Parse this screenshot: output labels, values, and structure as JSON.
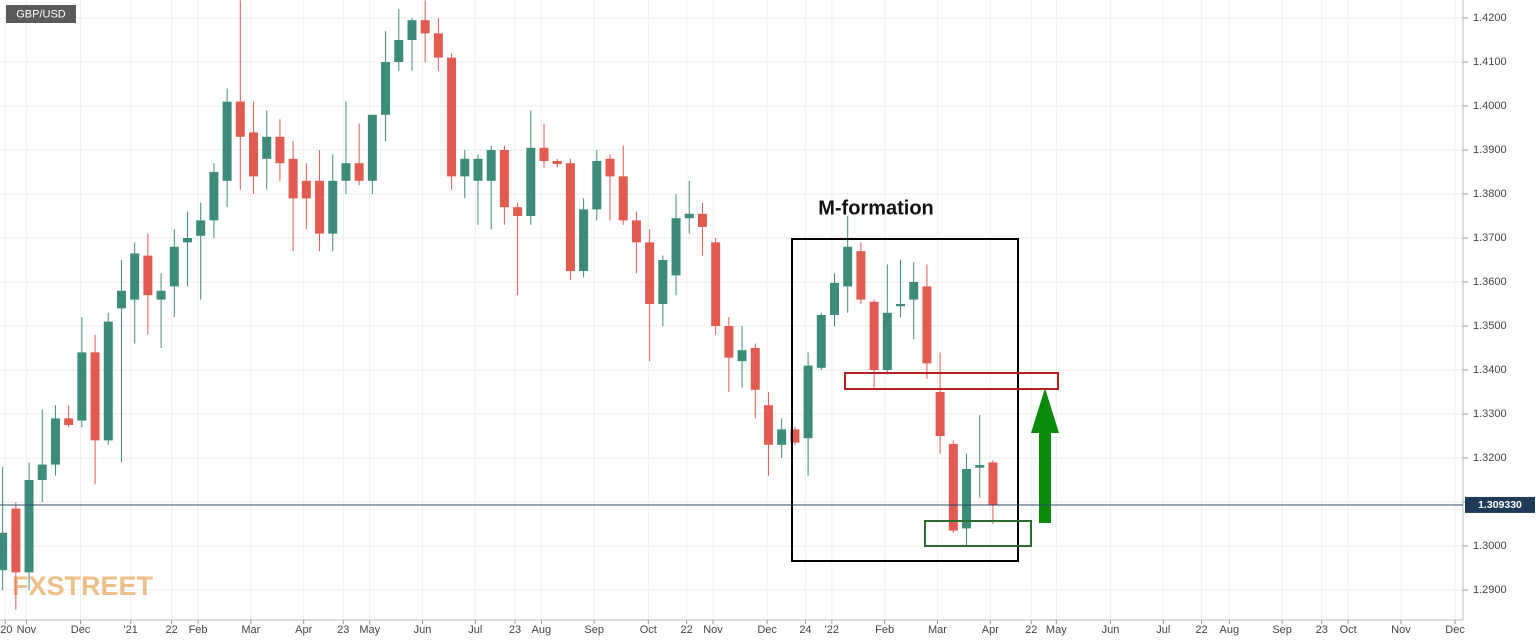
{
  "chart_data": {
    "type": "candlestick",
    "title": "GBP/USD",
    "annotation": "M-formation",
    "watermark": "FXSTREET",
    "up_color": "#3d8c7a",
    "down_color": "#e15b50",
    "grid": true,
    "x": [
      0,
      1,
      2,
      3,
      4,
      5,
      6,
      7,
      8,
      9,
      10,
      11,
      12,
      13,
      14,
      15,
      16,
      17,
      18,
      19,
      20,
      21,
      22,
      23,
      24,
      25,
      26,
      27,
      28,
      29,
      30,
      31,
      32,
      33,
      34,
      35,
      36,
      37,
      38,
      39,
      40,
      41,
      42,
      43,
      44,
      45,
      46,
      47,
      48,
      49,
      50,
      51,
      52,
      53,
      54,
      55,
      56,
      57,
      58,
      59,
      60,
      61,
      62,
      63,
      64,
      65,
      66,
      67,
      68,
      69,
      70,
      71,
      72,
      73,
      74,
      75
    ],
    "open": [
      1.2945,
      1.3085,
      1.294,
      1.315,
      1.3185,
      1.329,
      1.3285,
      1.344,
      1.324,
      1.354,
      1.356,
      1.366,
      1.356,
      1.359,
      1.369,
      1.3705,
      1.374,
      1.383,
      1.401,
      1.394,
      1.388,
      1.393,
      1.388,
      1.383,
      1.383,
      1.371,
      1.383,
      1.387,
      1.383,
      1.398,
      1.41,
      1.415,
      1.4195,
      1.4165,
      1.411,
      1.384,
      1.383,
      1.383,
      1.39,
      1.377,
      1.375,
      1.3905,
      1.3875,
      1.387,
      1.3625,
      1.3765,
      1.388,
      1.384,
      1.374,
      1.369,
      1.355,
      1.3615,
      1.3745,
      1.3755,
      1.369,
      1.35,
      1.342,
      1.345,
      1.332,
      1.323,
      1.3265,
      1.3245,
      1.3405,
      1.3525,
      1.359,
      1.367,
      1.3555,
      1.34,
      1.3545,
      1.356,
      1.359,
      1.335,
      1.3232,
      1.304,
      1.3178,
      1.319
    ],
    "high": [
      1.318,
      1.31,
      1.319,
      1.331,
      1.332,
      1.332,
      1.352,
      1.348,
      1.353,
      1.365,
      1.369,
      1.371,
      1.362,
      1.372,
      1.376,
      1.378,
      1.387,
      1.404,
      1.424,
      1.401,
      1.399,
      1.397,
      1.392,
      1.387,
      1.39,
      1.389,
      1.401,
      1.396,
      1.398,
      1.417,
      1.422,
      1.42,
      1.424,
      1.42,
      1.412,
      1.39,
      1.389,
      1.391,
      1.391,
      1.378,
      1.399,
      1.396,
      1.388,
      1.388,
      1.379,
      1.39,
      1.389,
      1.391,
      1.376,
      1.372,
      1.366,
      1.38,
      1.383,
      1.378,
      1.37,
      1.352,
      1.35,
      1.346,
      1.335,
      1.329,
      1.327,
      1.344,
      1.353,
      1.362,
      1.375,
      1.369,
      1.356,
      1.364,
      1.365,
      1.3645,
      1.364,
      1.344,
      1.324,
      1.321,
      1.3298,
      1.3195
    ],
    "low": [
      1.29,
      1.2855,
      1.29,
      1.31,
      1.316,
      1.327,
      1.327,
      1.314,
      1.323,
      1.319,
      1.346,
      1.348,
      1.345,
      1.352,
      1.359,
      1.356,
      1.37,
      1.377,
      1.381,
      1.38,
      1.381,
      1.383,
      1.367,
      1.372,
      1.367,
      1.367,
      1.38,
      1.382,
      1.38,
      1.392,
      1.408,
      1.408,
      1.41,
      1.408,
      1.381,
      1.379,
      1.373,
      1.372,
      1.373,
      1.357,
      1.373,
      1.386,
      1.386,
      1.3605,
      1.361,
      1.374,
      1.374,
      1.373,
      1.362,
      1.342,
      1.35,
      1.357,
      1.371,
      1.366,
      1.348,
      1.335,
      1.336,
      1.329,
      1.316,
      1.32,
      1.323,
      1.316,
      1.34,
      1.35,
      1.353,
      1.355,
      1.336,
      1.339,
      1.352,
      1.347,
      1.338,
      1.321,
      1.303,
      1.3,
      1.311,
      1.305
    ],
    "close": [
      1.303,
      1.294,
      1.315,
      1.3185,
      1.329,
      1.3275,
      1.344,
      1.324,
      1.351,
      1.358,
      1.3665,
      1.357,
      1.358,
      1.368,
      1.37,
      1.374,
      1.385,
      1.401,
      1.393,
      1.384,
      1.393,
      1.387,
      1.379,
      1.379,
      1.371,
      1.383,
      1.387,
      1.383,
      1.398,
      1.41,
      1.415,
      1.4195,
      1.4165,
      1.411,
      1.384,
      1.388,
      1.388,
      1.39,
      1.377,
      1.375,
      1.3905,
      1.3875,
      1.3868,
      1.3625,
      1.3765,
      1.3875,
      1.384,
      1.374,
      1.369,
      1.355,
      1.365,
      1.3745,
      1.3755,
      1.3725,
      1.35,
      1.3428,
      1.3445,
      1.3355,
      1.323,
      1.3265,
      1.3235,
      1.341,
      1.3525,
      1.3598,
      1.368,
      1.356,
      1.34,
      1.353,
      1.355,
      1.36,
      1.3415,
      1.325,
      1.3035,
      1.3175,
      1.3184,
      1.3093
    ],
    "current_price": {
      "value": 1.30933,
      "label": "1.309330"
    },
    "xlim": [
      -0.2,
      110.6
    ],
    "xticks": [
      {
        "value": 0.2,
        "label": "'20"
      },
      {
        "value": 1.8,
        "label": "Nov"
      },
      {
        "value": 5.9,
        "label": "Dec"
      },
      {
        "value": 9.7,
        "label": "'21"
      },
      {
        "value": 12.8,
        "label": "22"
      },
      {
        "value": 14.8,
        "label": "Feb"
      },
      {
        "value": 18.8,
        "label": "Mar"
      },
      {
        "value": 22.8,
        "label": "Apr"
      },
      {
        "value": 25.8,
        "label": "23"
      },
      {
        "value": 27.8,
        "label": "May"
      },
      {
        "value": 31.8,
        "label": "Jun"
      },
      {
        "value": 35.8,
        "label": "Jul"
      },
      {
        "value": 38.8,
        "label": "23"
      },
      {
        "value": 40.8,
        "label": "Aug"
      },
      {
        "value": 44.8,
        "label": "Sep"
      },
      {
        "value": 48.9,
        "label": "Oct"
      },
      {
        "value": 51.8,
        "label": "22"
      },
      {
        "value": 53.8,
        "label": "Nov"
      },
      {
        "value": 57.9,
        "label": "Dec"
      },
      {
        "value": 60.8,
        "label": "24"
      },
      {
        "value": 62.8,
        "label": "'22"
      },
      {
        "value": 66.8,
        "label": "Feb"
      },
      {
        "value": 70.8,
        "label": "Mar"
      },
      {
        "value": 74.8,
        "label": "Apr"
      },
      {
        "value": 77.9,
        "label": "22"
      },
      {
        "value": 79.8,
        "label": "May"
      },
      {
        "value": 83.9,
        "label": "Jun"
      },
      {
        "value": 87.9,
        "label": "Jul"
      },
      {
        "value": 90.8,
        "label": "22"
      },
      {
        "value": 92.9,
        "label": "Aug"
      },
      {
        "value": 96.9,
        "label": "Sep"
      },
      {
        "value": 99.9,
        "label": "23"
      },
      {
        "value": 101.9,
        "label": "Oct"
      },
      {
        "value": 105.9,
        "label": "Nov"
      },
      {
        "value": 110,
        "label": "Dec"
      }
    ],
    "ylim": [
      1.28318,
      1.42409
    ],
    "yticks": [
      {
        "value": 1.29,
        "label": "1.2900"
      },
      {
        "value": 1.3,
        "label": "1.3000"
      },
      {
        "value": 1.31,
        "label": "1.3100"
      },
      {
        "value": 1.32,
        "label": "1.3200"
      },
      {
        "value": 1.33,
        "label": "1.3300"
      },
      {
        "value": 1.34,
        "label": "1.3400"
      },
      {
        "value": 1.35,
        "label": "1.3500"
      },
      {
        "value": 1.36,
        "label": "1.3600"
      },
      {
        "value": 1.37,
        "label": "1.3700"
      },
      {
        "value": 1.38,
        "label": "1.3800"
      },
      {
        "value": 1.39,
        "label": "1.3900"
      },
      {
        "value": 1.4,
        "label": "1.4000"
      },
      {
        "value": 1.41,
        "label": "1.4100"
      },
      {
        "value": 1.42,
        "label": "1.4200"
      }
    ]
  }
}
